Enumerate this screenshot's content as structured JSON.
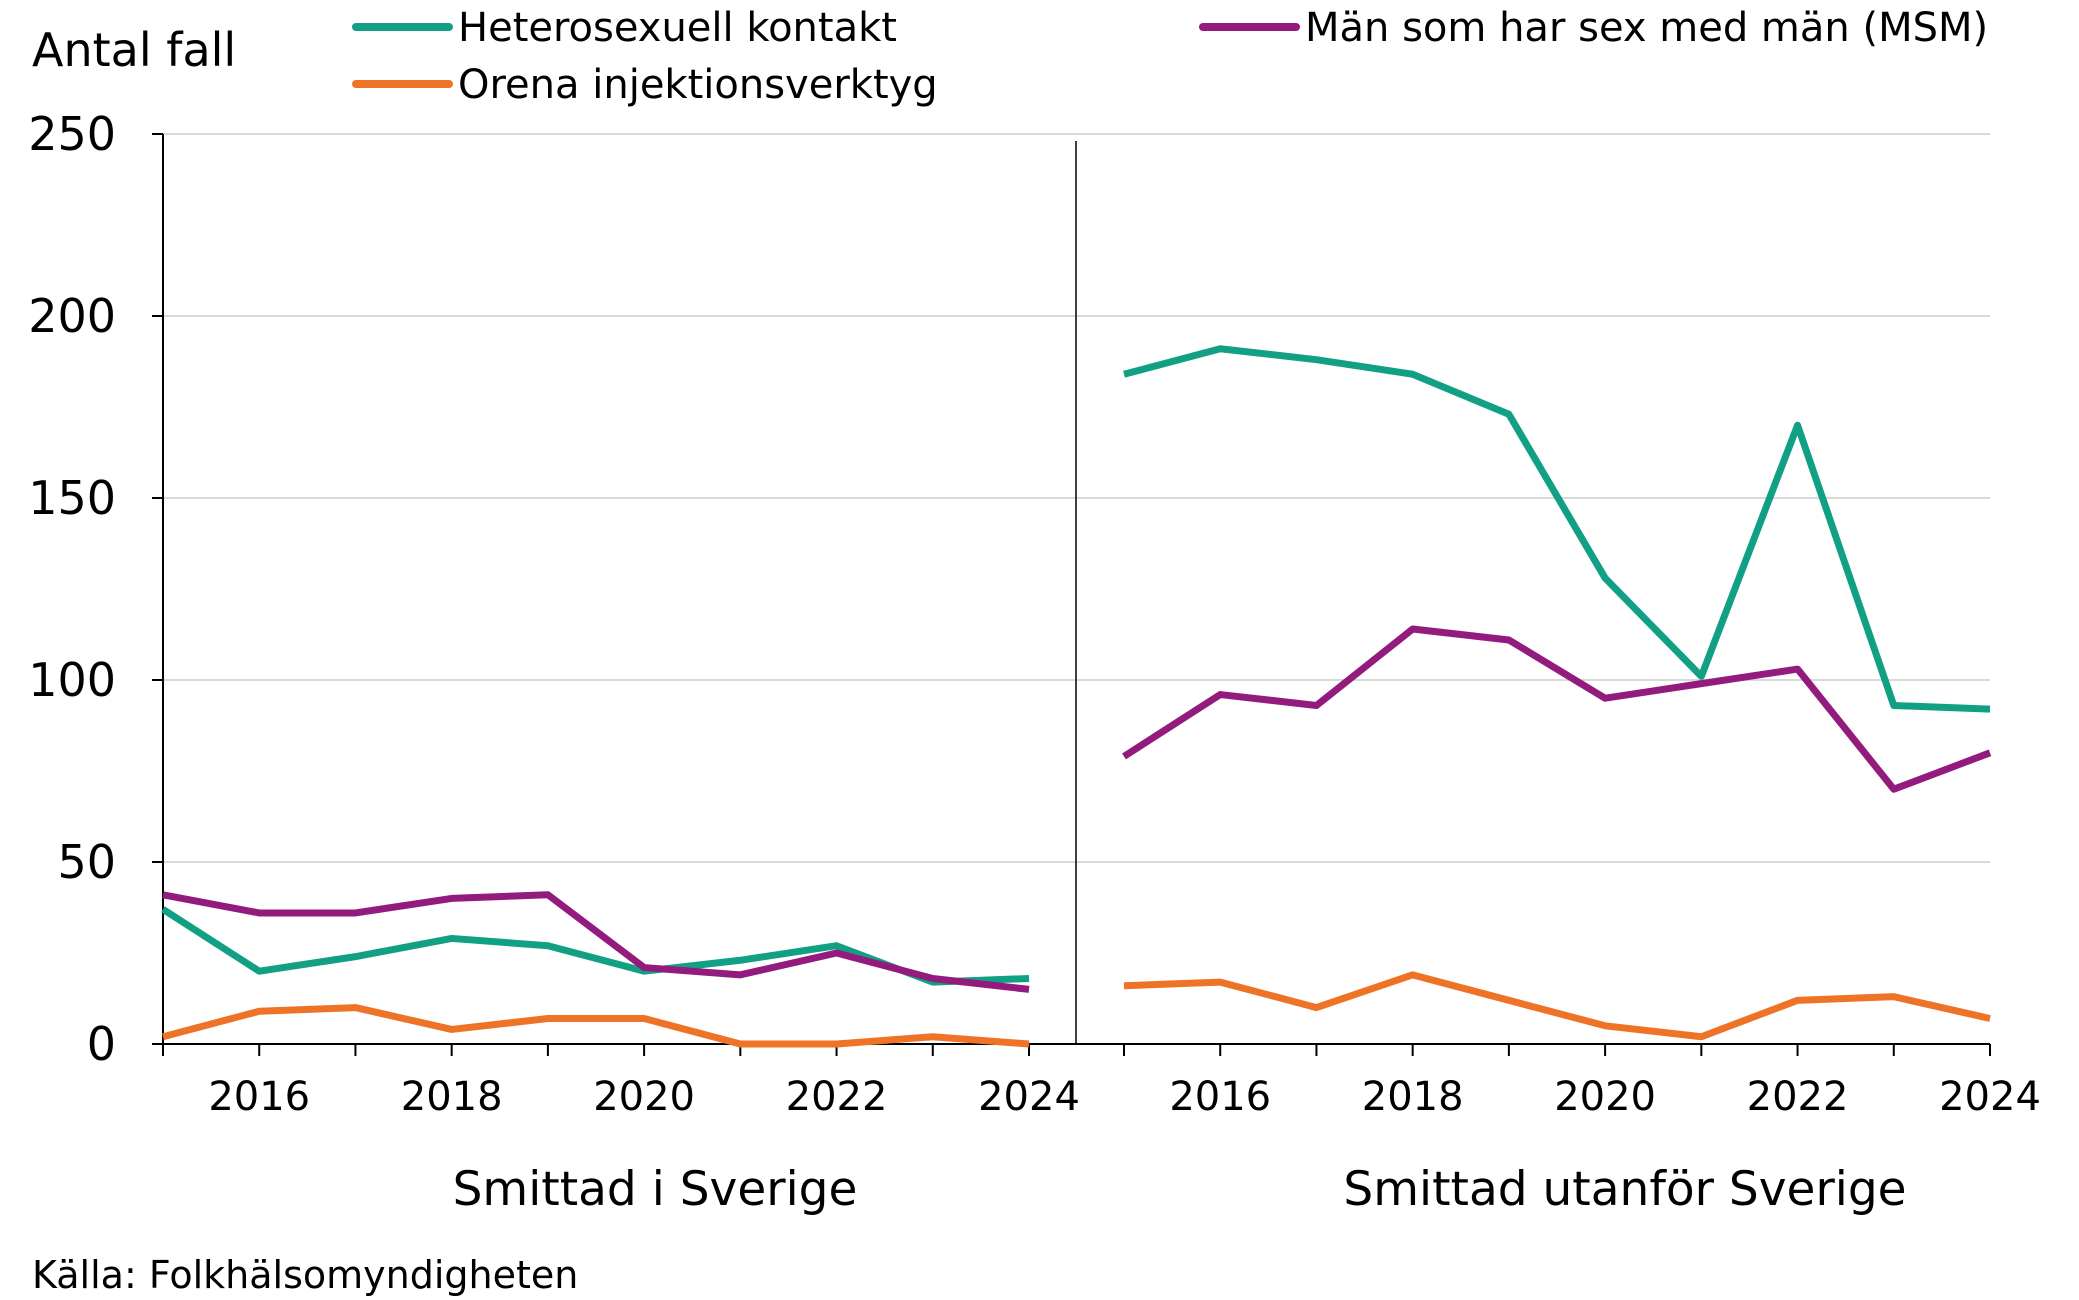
{
  "chart_data": {
    "type": "line",
    "ylabel": "Antal fall",
    "ylim": [
      0,
      250
    ],
    "yticks": [
      0,
      50,
      100,
      150,
      200,
      250
    ],
    "xticks": [
      2016,
      2018,
      2020,
      2022,
      2024
    ],
    "x": [
      2015,
      2016,
      2017,
      2018,
      2019,
      2020,
      2021,
      2022,
      2023,
      2024
    ],
    "grid": true,
    "legend_position": "top",
    "panels": [
      {
        "label": "Smittad i Sverige",
        "series": [
          {
            "name": "Heterosexuell kontakt",
            "color": "#12a085",
            "values": [
              37,
              20,
              24,
              29,
              27,
              20,
              23,
              27,
              17,
              18
            ]
          },
          {
            "name": "Män som har sex med män (MSM)",
            "color": "#931b7e",
            "values": [
              41,
              36,
              36,
              40,
              41,
              21,
              19,
              25,
              18,
              15
            ]
          },
          {
            "name": "Orena injektionsverktyg",
            "color": "#ee7326",
            "values": [
              2,
              9,
              10,
              4,
              7,
              7,
              0,
              0,
              2,
              0
            ]
          }
        ]
      },
      {
        "label": "Smittad utanför Sverige",
        "series": [
          {
            "name": "Heterosexuell kontakt",
            "color": "#12a085",
            "values": [
              184,
              191,
              188,
              184,
              173,
              128,
              101,
              170,
              93,
              92
            ]
          },
          {
            "name": "Män som har sex med män (MSM)",
            "color": "#931b7e",
            "values": [
              79,
              96,
              93,
              114,
              111,
              95,
              99,
              103,
              70,
              80
            ]
          },
          {
            "name": "Orena injektionsverktyg",
            "color": "#ee7326",
            "values": [
              16,
              17,
              10,
              19,
              12,
              5,
              2,
              12,
              13,
              7
            ]
          }
        ]
      }
    ],
    "legend": [
      {
        "name": "Heterosexuell kontakt",
        "color": "#12a085"
      },
      {
        "name": "Män som har sex med män (MSM)",
        "color": "#931b7e"
      },
      {
        "name": "Orena injektionsverktyg",
        "color": "#ee7326"
      }
    ],
    "source": "Källa: Folkhälsomyndigheten"
  }
}
